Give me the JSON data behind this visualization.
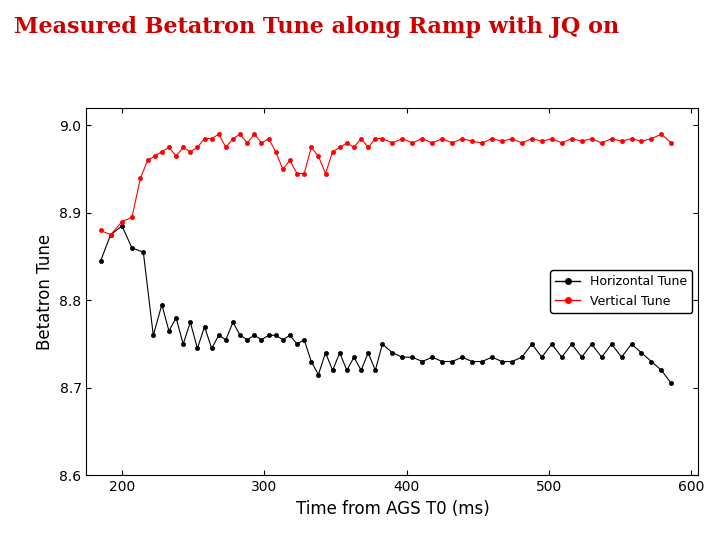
{
  "title": "Measured Betatron Tune along Ramp with JQ on",
  "title_color": "#cc0000",
  "title_fontsize": 16,
  "xlabel": "Time from AGS T0 (ms)",
  "ylabel": "Betatron Tune",
  "xlim": [
    175,
    605
  ],
  "ylim": [
    8.6,
    9.02
  ],
  "xticks": [
    200,
    300,
    400,
    500,
    600
  ],
  "yticks": [
    8.6,
    8.7,
    8.8,
    8.9,
    9.0
  ],
  "background_color": "#ffffff",
  "legend_entries": [
    "Horizontal Tune",
    "Vertical Tune"
  ],
  "legend_colors": [
    "black",
    "red"
  ],
  "horizontal_tune_x": [
    185,
    192,
    200,
    207,
    215,
    222,
    228,
    233,
    238,
    243,
    248,
    253,
    258,
    263,
    268,
    273,
    278,
    283,
    288,
    293,
    298,
    303,
    308,
    313,
    318,
    323,
    328,
    333,
    338,
    343,
    348,
    353,
    358,
    363,
    368,
    373,
    378,
    383,
    390,
    397,
    404,
    411,
    418,
    425,
    432,
    439,
    446,
    453,
    460,
    467,
    474,
    481,
    488,
    495,
    502,
    509,
    516,
    523,
    530,
    537,
    544,
    551,
    558,
    565,
    572,
    579,
    586
  ],
  "horizontal_tune_y": [
    8.845,
    8.875,
    8.885,
    8.86,
    8.855,
    8.76,
    8.795,
    8.765,
    8.78,
    8.75,
    8.775,
    8.745,
    8.77,
    8.745,
    8.76,
    8.755,
    8.775,
    8.76,
    8.755,
    8.76,
    8.755,
    8.76,
    8.76,
    8.755,
    8.76,
    8.75,
    8.755,
    8.73,
    8.715,
    8.74,
    8.72,
    8.74,
    8.72,
    8.735,
    8.72,
    8.74,
    8.72,
    8.75,
    8.74,
    8.735,
    8.735,
    8.73,
    8.735,
    8.73,
    8.73,
    8.735,
    8.73,
    8.73,
    8.735,
    8.73,
    8.73,
    8.735,
    8.75,
    8.735,
    8.75,
    8.735,
    8.75,
    8.735,
    8.75,
    8.735,
    8.75,
    8.735,
    8.75,
    8.74,
    8.73,
    8.72,
    8.705
  ],
  "vertical_tune_x": [
    185,
    192,
    200,
    207,
    213,
    218,
    223,
    228,
    233,
    238,
    243,
    248,
    253,
    258,
    263,
    268,
    273,
    278,
    283,
    288,
    293,
    298,
    303,
    308,
    313,
    318,
    323,
    328,
    333,
    338,
    343,
    348,
    353,
    358,
    363,
    368,
    373,
    378,
    383,
    390,
    397,
    404,
    411,
    418,
    425,
    432,
    439,
    446,
    453,
    460,
    467,
    474,
    481,
    488,
    495,
    502,
    509,
    516,
    523,
    530,
    537,
    544,
    551,
    558,
    565,
    572,
    579,
    586
  ],
  "vertical_tune_y": [
    8.88,
    8.875,
    8.89,
    8.895,
    8.94,
    8.96,
    8.965,
    8.97,
    8.975,
    8.965,
    8.975,
    8.97,
    8.975,
    8.985,
    8.985,
    8.99,
    8.975,
    8.985,
    8.99,
    8.98,
    8.99,
    8.98,
    8.985,
    8.97,
    8.95,
    8.96,
    8.945,
    8.945,
    8.975,
    8.965,
    8.945,
    8.97,
    8.975,
    8.98,
    8.975,
    8.985,
    8.975,
    8.985,
    8.985,
    8.98,
    8.985,
    8.98,
    8.985,
    8.98,
    8.985,
    8.98,
    8.985,
    8.982,
    8.98,
    8.985,
    8.982,
    8.985,
    8.98,
    8.985,
    8.982,
    8.985,
    8.98,
    8.985,
    8.982,
    8.985,
    8.98,
    8.985,
    8.982,
    8.985,
    8.982,
    8.985,
    8.99,
    8.98
  ]
}
